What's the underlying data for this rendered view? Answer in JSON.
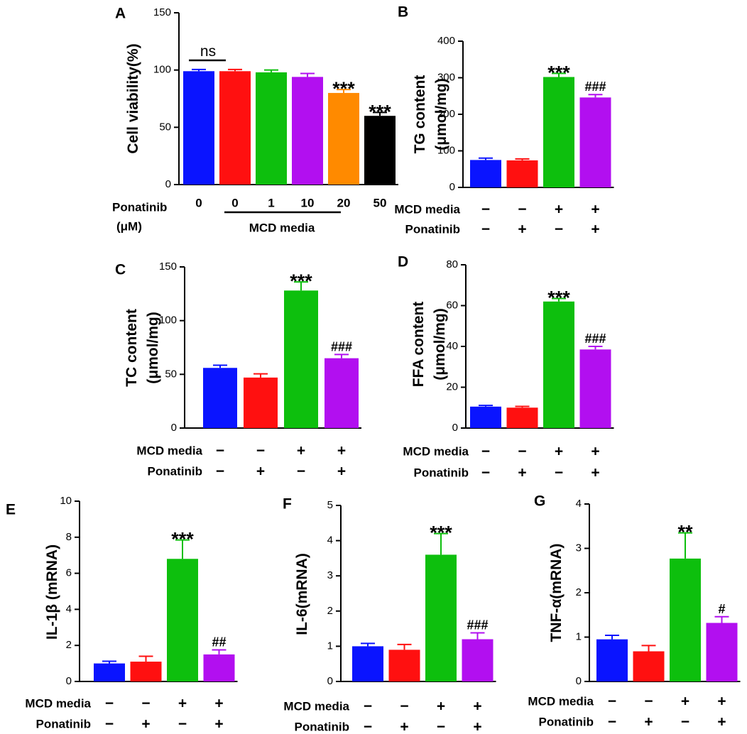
{
  "colors": {
    "blue": "#0a14ff",
    "red": "#ff1010",
    "green": "#0dbf0d",
    "purple": "#b20ff0",
    "orange": "#ff8a00",
    "black": "#000000"
  },
  "row_labels": {
    "mcd": "MCD media",
    "ponatinib": "Ponatinib",
    "plus": "+",
    "minus": "−"
  },
  "chart_data": [
    {
      "id": "A",
      "type": "bar",
      "panel_label": "A",
      "ylabel": "Cell viability(%)",
      "ylim": [
        0,
        150
      ],
      "yticks": [
        0,
        50,
        100,
        150
      ],
      "categories": [
        "0",
        "0",
        "1",
        "10",
        "20",
        "50"
      ],
      "values": [
        99,
        99,
        98,
        94,
        80,
        60
      ],
      "errors": [
        1.5,
        1.5,
        2,
        3,
        3,
        3
      ],
      "colors": [
        "blue",
        "red",
        "green",
        "purple",
        "orange",
        "black"
      ],
      "annotations": [
        "",
        "",
        "",
        "",
        "***",
        "***"
      ],
      "ns_label": "ns",
      "x_title_line1": "Ponatinib",
      "x_title_line2": "(μM)",
      "group_label": "MCD media"
    },
    {
      "id": "B",
      "type": "bar",
      "panel_label": "B",
      "ylabel_line1": "TG content",
      "ylabel_line2": "(μmol/mg)",
      "ylim": [
        0,
        400
      ],
      "yticks": [
        0,
        100,
        200,
        300,
        400
      ],
      "values": [
        75,
        74,
        302,
        246
      ],
      "errors": [
        5,
        4,
        10,
        8
      ],
      "colors": [
        "blue",
        "red",
        "green",
        "purple"
      ],
      "annotations": [
        "",
        "",
        "***",
        "###"
      ],
      "mcd": [
        "−",
        "−",
        "+",
        "+"
      ],
      "ponatinib": [
        "−",
        "+",
        "−",
        "+"
      ]
    },
    {
      "id": "C",
      "type": "bar",
      "panel_label": "C",
      "ylabel_line1": "TC content",
      "ylabel_line2": "(μmol/mg)",
      "ylim": [
        0,
        150
      ],
      "yticks": [
        0,
        50,
        100,
        150
      ],
      "values": [
        56,
        47,
        128,
        65
      ],
      "errors": [
        2.5,
        3.5,
        8,
        3.5
      ],
      "colors": [
        "blue",
        "red",
        "green",
        "purple"
      ],
      "annotations": [
        "",
        "",
        "***",
        "###"
      ],
      "mcd": [
        "−",
        "−",
        "+",
        "+"
      ],
      "ponatinib": [
        "−",
        "+",
        "−",
        "+"
      ]
    },
    {
      "id": "D",
      "type": "bar",
      "panel_label": "D",
      "ylabel_line1": "FFA content",
      "ylabel_line2": "(μmol/mg)",
      "ylim": [
        0,
        80
      ],
      "yticks": [
        0,
        20,
        40,
        60,
        80
      ],
      "values": [
        10.5,
        10,
        62,
        38.5
      ],
      "errors": [
        0.6,
        0.6,
        1.5,
        1.5
      ],
      "colors": [
        "blue",
        "red",
        "green",
        "purple"
      ],
      "annotations": [
        "",
        "",
        "***",
        "###"
      ],
      "mcd": [
        "−",
        "−",
        "+",
        "+"
      ],
      "ponatinib": [
        "−",
        "+",
        "−",
        "+"
      ]
    },
    {
      "id": "E",
      "type": "bar",
      "panel_label": "E",
      "ylabel": "IL-1β (mRNA)",
      "ylim": [
        0,
        10
      ],
      "yticks": [
        0,
        2,
        4,
        6,
        8,
        10
      ],
      "values": [
        1.0,
        1.1,
        6.8,
        1.5
      ],
      "errors": [
        0.12,
        0.3,
        1.05,
        0.25
      ],
      "colors": [
        "blue",
        "red",
        "green",
        "purple"
      ],
      "annotations": [
        "",
        "",
        "***",
        "##"
      ],
      "mcd": [
        "−",
        "−",
        "+",
        "+"
      ],
      "ponatinib": [
        "−",
        "+",
        "−",
        "+"
      ]
    },
    {
      "id": "F",
      "type": "bar",
      "panel_label": "F",
      "ylabel": "IL-6(mRNA)",
      "ylim": [
        0,
        5
      ],
      "yticks": [
        0,
        1,
        2,
        3,
        4,
        5
      ],
      "values": [
        1.0,
        0.9,
        3.6,
        1.2
      ],
      "errors": [
        0.08,
        0.15,
        0.6,
        0.18
      ],
      "colors": [
        "blue",
        "red",
        "green",
        "purple"
      ],
      "annotations": [
        "",
        "",
        "***",
        "###"
      ],
      "mcd": [
        "−",
        "−",
        "+",
        "+"
      ],
      "ponatinib": [
        "−",
        "+",
        "−",
        "+"
      ]
    },
    {
      "id": "G",
      "type": "bar",
      "panel_label": "G",
      "ylabel": "TNF-α(mRNA)",
      "ylim": [
        0,
        4
      ],
      "yticks": [
        0,
        1,
        2,
        3,
        4
      ],
      "values": [
        0.95,
        0.68,
        2.77,
        1.32
      ],
      "errors": [
        0.09,
        0.13,
        0.58,
        0.14
      ],
      "colors": [
        "blue",
        "red",
        "green",
        "purple"
      ],
      "annotations": [
        "",
        "",
        "**",
        "#"
      ],
      "mcd": [
        "−",
        "−",
        "+",
        "+"
      ],
      "ponatinib": [
        "−",
        "+",
        "−",
        "+"
      ]
    }
  ]
}
